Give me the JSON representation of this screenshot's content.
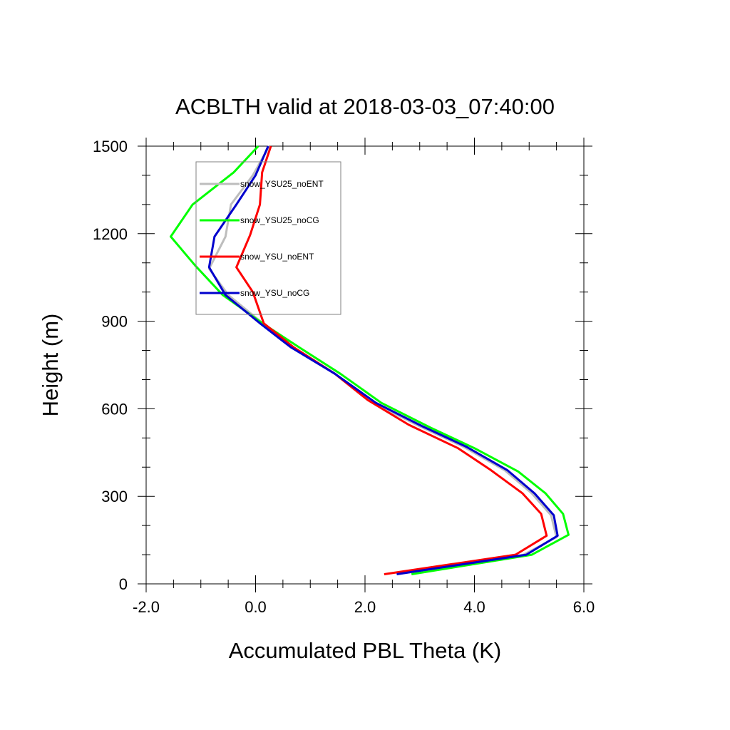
{
  "chart_data": {
    "type": "line",
    "title": "ACBLTH valid at 2018-03-03_07:40:00",
    "xlabel": "Accumulated PBL Theta (K)",
    "ylabel": "Height (m)",
    "xlim": [
      -2.0,
      6.0
    ],
    "ylim": [
      0,
      1500
    ],
    "x_ticks": [
      -2.0,
      0.0,
      2.0,
      4.0,
      6.0
    ],
    "x_tick_labels": [
      "-2.0",
      "0.0",
      "2.0",
      "4.0",
      "6.0"
    ],
    "y_ticks": [
      0,
      300,
      600,
      900,
      1200,
      1500
    ],
    "y_tick_labels": [
      "0",
      "300",
      "600",
      "900",
      "1200",
      "1500"
    ],
    "grid": false,
    "legend_position": "top-left",
    "series": [
      {
        "name": "snow_YSU25_noENT",
        "color": "#bdbdbd",
        "points": [
          [
            2.58,
            33
          ],
          [
            4.9,
            100
          ],
          [
            5.5,
            160
          ],
          [
            5.4,
            235
          ],
          [
            5.05,
            310
          ],
          [
            4.55,
            390
          ],
          [
            3.8,
            470
          ],
          [
            3.0,
            540
          ],
          [
            2.15,
            620
          ],
          [
            1.45,
            720
          ],
          [
            0.7,
            810
          ],
          [
            0.15,
            890
          ],
          [
            -0.5,
            990
          ],
          [
            -0.85,
            1080
          ],
          [
            -0.55,
            1190
          ],
          [
            -0.45,
            1300
          ],
          [
            -0.05,
            1400
          ],
          [
            0.25,
            1500
          ]
        ]
      },
      {
        "name": "snow_YSU25_noCG",
        "color": "#00ff00",
        "points": [
          [
            2.85,
            33
          ],
          [
            5.05,
            100
          ],
          [
            5.72,
            168
          ],
          [
            5.62,
            240
          ],
          [
            5.3,
            310
          ],
          [
            4.8,
            385
          ],
          [
            4.0,
            465
          ],
          [
            3.2,
            535
          ],
          [
            2.3,
            620
          ],
          [
            1.55,
            720
          ],
          [
            0.8,
            810
          ],
          [
            0.15,
            890
          ],
          [
            -0.6,
            990
          ],
          [
            -1.1,
            1090
          ],
          [
            -1.55,
            1190
          ],
          [
            -1.15,
            1300
          ],
          [
            -0.4,
            1410
          ],
          [
            0.05,
            1500
          ]
        ]
      },
      {
        "name": "snow_YSU_noENT",
        "color": "#ff0000",
        "points": [
          [
            2.35,
            33
          ],
          [
            4.75,
            100
          ],
          [
            5.32,
            165
          ],
          [
            5.22,
            240
          ],
          [
            4.88,
            310
          ],
          [
            4.3,
            390
          ],
          [
            3.7,
            465
          ],
          [
            2.8,
            545
          ],
          [
            2.05,
            630
          ],
          [
            1.45,
            720
          ],
          [
            0.7,
            810
          ],
          [
            0.15,
            893
          ],
          [
            -0.05,
            1000
          ],
          [
            -0.35,
            1085
          ],
          [
            -0.1,
            1195
          ],
          [
            0.08,
            1300
          ],
          [
            0.12,
            1410
          ],
          [
            0.28,
            1500
          ]
        ]
      },
      {
        "name": "snow_YSU_noCG",
        "color": "#0000cd",
        "points": [
          [
            2.58,
            33
          ],
          [
            4.95,
            100
          ],
          [
            5.52,
            165
          ],
          [
            5.45,
            235
          ],
          [
            5.1,
            310
          ],
          [
            4.6,
            390
          ],
          [
            3.85,
            470
          ],
          [
            3.05,
            540
          ],
          [
            2.2,
            620
          ],
          [
            1.45,
            720
          ],
          [
            0.65,
            810
          ],
          [
            0.1,
            890
          ],
          [
            -0.55,
            990
          ],
          [
            -0.85,
            1085
          ],
          [
            -0.75,
            1190
          ],
          [
            -0.35,
            1300
          ],
          [
            0.0,
            1400
          ],
          [
            0.23,
            1500
          ]
        ]
      }
    ]
  }
}
